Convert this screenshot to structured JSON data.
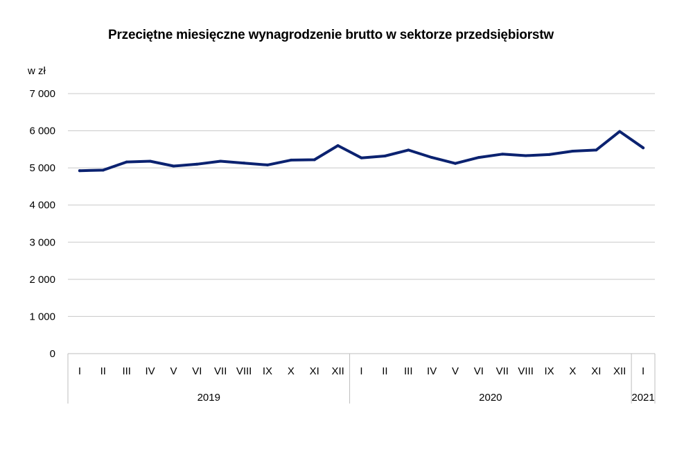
{
  "chart_data": {
    "type": "line",
    "title": "Przeciętne miesięczne wynagrodzenie brutto w sektorze przedsiębiorstw",
    "ylabel": "w zł",
    "ylim": [
      0,
      7000
    ],
    "yticks": [
      "0",
      "1 000",
      "2 000",
      "3 000",
      "4 000",
      "5 000",
      "6 000",
      "7 000"
    ],
    "grid": true,
    "color": "#0b2270",
    "years": [
      {
        "label": "2019",
        "months": 12
      },
      {
        "label": "2020",
        "months": 12
      },
      {
        "label": "2021",
        "months": 1
      }
    ],
    "categories": [
      "I",
      "II",
      "III",
      "IV",
      "V",
      "VI",
      "VII",
      "VIII",
      "IX",
      "X",
      "XI",
      "XII",
      "I",
      "II",
      "III",
      "IV",
      "V",
      "VI",
      "VII",
      "VIII",
      "IX",
      "X",
      "XI",
      "XII",
      "I"
    ],
    "series": [
      {
        "values": [
          4925,
          4940,
          5160,
          5180,
          5050,
          5100,
          5180,
          5130,
          5080,
          5210,
          5220,
          5600,
          5270,
          5320,
          5480,
          5280,
          5120,
          5280,
          5370,
          5330,
          5360,
          5450,
          5480,
          5980,
          5540
        ]
      }
    ]
  }
}
